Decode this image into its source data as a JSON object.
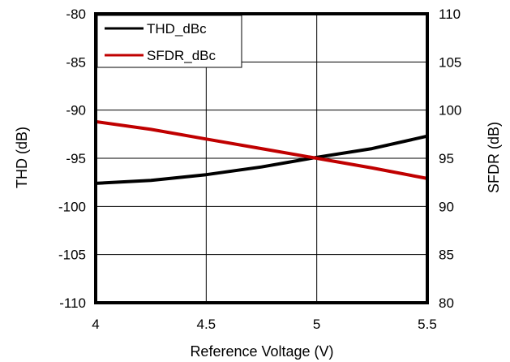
{
  "chart_data": {
    "type": "line",
    "xlabel": "Reference Voltage (V)",
    "ylabel": "THD (dB)",
    "y2label": "SFDR (dB)",
    "xlim": [
      4,
      5.5
    ],
    "ylim": [
      -110,
      -80
    ],
    "y2lim": [
      80,
      110
    ],
    "xticks": [
      "4",
      "4.5",
      "5",
      "5.5"
    ],
    "yticks": [
      "-80",
      "-85",
      "-90",
      "-95",
      "-100",
      "-105",
      "-110"
    ],
    "y2ticks": [
      "110",
      "105",
      "100",
      "95",
      "90",
      "85",
      "80"
    ],
    "grid": true,
    "legend_position": "top-left",
    "series": [
      {
        "name": "THD_dBc",
        "axis": "left",
        "color": "#000000",
        "x": [
          4.0,
          4.25,
          4.5,
          4.75,
          5.0,
          5.25,
          5.5
        ],
        "y": [
          -97.6,
          -97.3,
          -96.7,
          -95.9,
          -94.9,
          -94.0,
          -92.7
        ]
      },
      {
        "name": "SFDR_dBc",
        "axis": "right",
        "color": "#c00000",
        "x": [
          4.0,
          4.25,
          4.5,
          4.75,
          5.0,
          5.25,
          5.5
        ],
        "y": [
          98.8,
          98.0,
          97.0,
          96.0,
          95.0,
          94.0,
          92.9
        ]
      }
    ]
  }
}
